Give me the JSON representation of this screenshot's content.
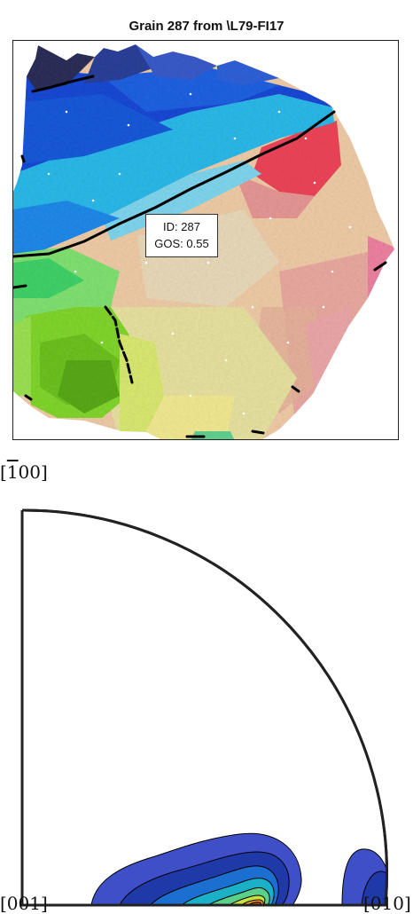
{
  "title": "Grain 287 from \\L79-FI17",
  "grain_label": {
    "id_text": "ID: 287",
    "gos_text": "GOS: 0.55"
  },
  "pole_figure": {
    "label_top": "[̄100]",
    "label_top_bar": "1",
    "label_top_rest": "00]",
    "label_bottom_left": "[001]",
    "label_bottom_right": "[010]"
  },
  "colors": {
    "contour_levels": [
      "#3f4fc8",
      "#1f3aa8",
      "#1a6fd0",
      "#1ab0c8",
      "#5ad08a",
      "#c8e040",
      "#f0a020",
      "#e84010"
    ],
    "grain_boundary": "#000000"
  }
}
